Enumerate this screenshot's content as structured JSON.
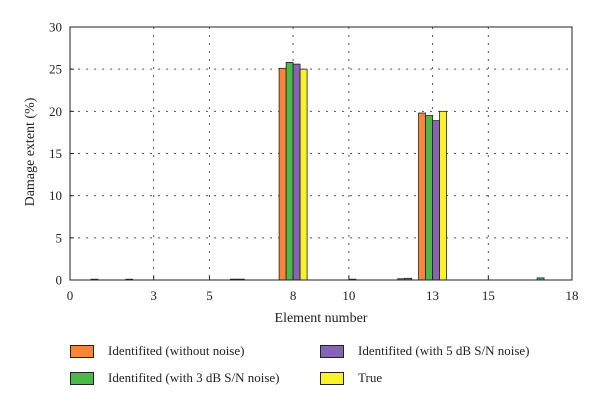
{
  "chart_data": {
    "type": "bar",
    "xlabel": "Element number",
    "ylabel": "Damage extent (%)",
    "xlim": [
      0,
      18
    ],
    "ylim": [
      0,
      30
    ],
    "x_ticks": [
      0,
      3,
      5,
      8,
      10,
      13,
      15,
      18
    ],
    "y_ticks": [
      0,
      5,
      10,
      15,
      20,
      25,
      30
    ],
    "grid": "dotted",
    "legend_position": "bottom",
    "series": [
      {
        "name": "Identifited (without noise)",
        "color": "#f7853a",
        "points": [
          {
            "x": 8,
            "y": 25.1
          },
          {
            "x": 13,
            "y": 19.8
          }
        ]
      },
      {
        "name": "Identifited (with 3 dB S/N noise)",
        "color": "#4cb84a",
        "points": [
          {
            "x": 1,
            "y": 0.08
          },
          {
            "x": 6,
            "y": 0.1
          },
          {
            "x": 8,
            "y": 25.8
          },
          {
            "x": 12,
            "y": 0.15
          },
          {
            "x": 13,
            "y": 19.5
          },
          {
            "x": 17,
            "y": 0.25
          }
        ]
      },
      {
        "name": "Identifited (with 5 dB S/N noise)",
        "color": "#8664b5",
        "points": [
          {
            "x": 2,
            "y": 0.05
          },
          {
            "x": 6,
            "y": 0.1
          },
          {
            "x": 8,
            "y": 25.6
          },
          {
            "x": 10,
            "y": 0.05
          },
          {
            "x": 12,
            "y": 0.2
          },
          {
            "x": 13,
            "y": 18.9
          }
        ]
      },
      {
        "name": "True",
        "color": "#f8f22a",
        "points": [
          {
            "x": 8,
            "y": 25.0
          },
          {
            "x": 13,
            "y": 20.0
          }
        ]
      }
    ]
  }
}
